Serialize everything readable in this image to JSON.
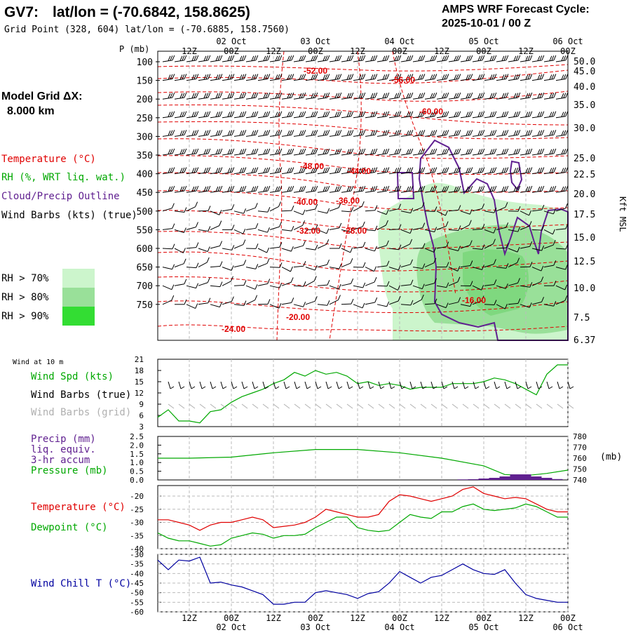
{
  "header": {
    "station": "GV7:",
    "latlon": "lat/lon = (-70.6842, 158.8625)",
    "grid_point": "Grid Point (328, 604) lat/lon = (-70.6885, 158.7560)",
    "cycle_title": "AMPS WRF Forecast Cycle:",
    "cycle_value": "2025-10-01 / 00  Z",
    "grid_label": "Model Grid ΔX:",
    "grid_value": "8.000 km"
  },
  "time_axis": {
    "days": [
      "02 Oct",
      "03 Oct",
      "04 Oct",
      "05 Oct",
      "06 Oct"
    ],
    "hour_labels": [
      "12Z",
      "00Z",
      "12Z",
      "00Z",
      "12Z",
      "00Z",
      "12Z",
      "00Z",
      "12Z",
      "00Z"
    ],
    "hours": [
      12,
      24,
      36,
      48,
      60,
      72,
      84,
      96,
      108,
      120
    ],
    "range_hours": [
      3,
      120
    ]
  },
  "profile": {
    "p_label": "P (mb)",
    "pressure_levels": [
      "100",
      "150",
      "200",
      "250",
      "300",
      "350",
      "400",
      "450",
      "500",
      "550",
      "600",
      "650",
      "700",
      "750"
    ],
    "height_labels": [
      "50.0",
      "45.0",
      "40.0",
      "35.0",
      "30.0",
      "25.0",
      "22.5",
      "20.0",
      "17.5",
      "15.0",
      "12.5",
      "10.0",
      "7.5",
      "6.37"
    ],
    "height_axis_title": "Kft MSL",
    "legend": [
      {
        "label": "Temperature (°C)",
        "color": "#e00000"
      },
      {
        "label": "RH (%, WRT liq. wat.)",
        "color": "#00a800"
      },
      {
        "label": "Cloud/Precip Outline",
        "color": "#602090"
      },
      {
        "label": "Wind Barbs (kts) (true)",
        "color": "#000000"
      }
    ],
    "rh_legend": [
      {
        "label": "RH > 70%",
        "color": "#ccf5cc"
      },
      {
        "label": "RH > 80%",
        "color": "#99e099"
      },
      {
        "label": "RH > 90%",
        "color": "#33dd33"
      }
    ],
    "temp_labels": [
      "-52.00",
      "-56.00",
      "-60.00",
      "-48.00",
      "-44.00",
      "-40.00",
      "-36.00",
      "-32.00",
      "-28.00",
      "-16.00",
      "-20.00",
      "-24.00"
    ]
  },
  "panel_wind": {
    "title": "Wind at 10 m",
    "labels": [
      {
        "text": "Wind Spd (kts)",
        "color": "#00a800"
      },
      {
        "text": "Wind Barbs (true)",
        "color": "#000000"
      },
      {
        "text": "Wind Barbs (grid)",
        "color": "#b0b0b0"
      }
    ],
    "y_ticks": [
      "21",
      "18",
      "15",
      "12",
      "9",
      "6",
      "3"
    ]
  },
  "panel_precip": {
    "labels": [
      {
        "text": "Precip (mm)",
        "color": "#602090"
      },
      {
        "text": "liq. equiv.",
        "color": "#602090"
      },
      {
        "text": "3-hr accum",
        "color": "#602090"
      },
      {
        "text": "Pressure (mb)",
        "color": "#00a800"
      }
    ],
    "left_ticks": [
      "2.5",
      "2.0",
      "1.5",
      "1.0",
      "0.5",
      "0.0"
    ],
    "right_ticks": [
      "780",
      "770",
      "760",
      "750",
      "740"
    ],
    "right_unit": "(mb)"
  },
  "panel_temp": {
    "labels": [
      {
        "text": "Temperature (°C)",
        "color": "#e00000"
      },
      {
        "text": "Dewpoint (°C)",
        "color": "#00a800"
      }
    ],
    "y_ticks": [
      "-20",
      "-25",
      "-30",
      "-35",
      "-40"
    ]
  },
  "panel_chill": {
    "labels": [
      {
        "text": "Wind Chill T (°C)",
        "color": "#0000a0"
      }
    ],
    "y_ticks": [
      "-30",
      "-35",
      "-40",
      "-45",
      "-50",
      "-55",
      "-60"
    ]
  },
  "chart_data": [
    {
      "type": "line",
      "title": "Wind at 10 m",
      "ylabel": "Wind Spd (kts)",
      "ylim": [
        3,
        21
      ],
      "x": [
        3,
        6,
        9,
        12,
        15,
        18,
        21,
        24,
        27,
        30,
        33,
        36,
        39,
        42,
        45,
        48,
        51,
        54,
        57,
        60,
        63,
        66,
        69,
        72,
        75,
        78,
        81,
        84,
        87,
        90,
        93,
        96,
        99,
        102,
        105,
        108,
        111,
        114,
        117,
        120
      ],
      "series": [
        {
          "name": "Wind Spd (kts)",
          "color": "#00a800",
          "values": [
            5.5,
            7.5,
            4.5,
            4.5,
            4,
            7,
            7.5,
            9.5,
            11,
            12,
            13,
            14.5,
            15.5,
            17.5,
            16.5,
            18,
            17,
            17.5,
            16.5,
            14.5,
            15,
            14,
            14.5,
            14,
            13,
            13.5,
            13.5,
            13.5,
            14.5,
            14.5,
            14.5,
            15,
            16,
            15.5,
            14.5,
            13,
            11.5,
            17,
            19.5,
            19.5
          ]
        }
      ],
      "barbs_true": {
        "color": "#000000",
        "x_start": 3,
        "x_end": 120,
        "y": 15
      },
      "barbs_grid": {
        "color": "#b0b0b0",
        "x_start": 3,
        "x_end": 120,
        "y": 9
      }
    },
    {
      "type": "bar",
      "title": "Precip / Pressure",
      "ylabel": "Precip (mm)",
      "ylim": [
        0,
        2.5
      ],
      "y2lim": [
        740,
        780
      ],
      "series": [
        {
          "name": "Pressure (mb)",
          "type": "line",
          "color": "#00a800",
          "axis": "right",
          "x": [
            3,
            12,
            24,
            36,
            48,
            60,
            72,
            84,
            96,
            102,
            108,
            114,
            120
          ],
          "values": [
            760,
            760,
            761,
            765,
            768,
            768,
            765,
            760,
            753,
            745,
            744,
            746,
            749
          ]
        },
        {
          "name": "Precip (mm)",
          "type": "bar",
          "color": "#602090",
          "axis": "left",
          "x": [
            90,
            93,
            96,
            99,
            102,
            105,
            108,
            111,
            114,
            117
          ],
          "values": [
            0.03,
            0.04,
            0.08,
            0.12,
            0.2,
            0.32,
            0.32,
            0.2,
            0.12,
            0.05
          ]
        }
      ]
    },
    {
      "type": "line",
      "title": "Temperature / Dewpoint",
      "ylabel": "(°C)",
      "ylim": [
        -40,
        -16
      ],
      "x": [
        3,
        6,
        9,
        12,
        15,
        18,
        21,
        24,
        27,
        30,
        33,
        36,
        39,
        42,
        45,
        48,
        51,
        54,
        57,
        60,
        63,
        66,
        69,
        72,
        75,
        78,
        81,
        84,
        87,
        90,
        93,
        96,
        99,
        102,
        105,
        108,
        111,
        114,
        117,
        120
      ],
      "series": [
        {
          "name": "Temperature (°C)",
          "color": "#e00000",
          "values": [
            -29,
            -29,
            -30,
            -31,
            -33,
            -31,
            -30,
            -30,
            -29,
            -28,
            -29,
            -32,
            -31.5,
            -31,
            -30,
            -28,
            -25,
            -26,
            -27,
            -28,
            -28,
            -27,
            -22,
            -19.5,
            -20,
            -21,
            -22,
            -21,
            -20,
            -17.5,
            -16.5,
            -19,
            -20,
            -21,
            -20.5,
            -21,
            -23,
            -25,
            -26,
            -26
          ]
        },
        {
          "name": "Dewpoint (°C)",
          "color": "#00a800",
          "values": [
            -34,
            -36,
            -37,
            -37,
            -38,
            -39,
            -38.5,
            -36,
            -35,
            -34,
            -34.5,
            -36,
            -35,
            -35,
            -34.5,
            -32,
            -30,
            -28,
            -28,
            -32,
            -33,
            -33.5,
            -33,
            -30,
            -27,
            -28,
            -28.5,
            -26,
            -26,
            -24,
            -23,
            -25,
            -25.5,
            -25,
            -24.5,
            -23,
            -24,
            -26,
            -28,
            -28
          ]
        }
      ]
    },
    {
      "type": "line",
      "title": "Wind Chill",
      "ylabel": "Wind Chill T (°C)",
      "ylim": [
        -60,
        -30
      ],
      "x": [
        3,
        6,
        9,
        12,
        15,
        18,
        21,
        24,
        27,
        30,
        33,
        36,
        39,
        42,
        45,
        48,
        51,
        54,
        57,
        60,
        63,
        66,
        69,
        72,
        75,
        78,
        81,
        84,
        87,
        90,
        93,
        96,
        99,
        102,
        105,
        108,
        111,
        114,
        117,
        120
      ],
      "series": [
        {
          "name": "Wind Chill T (°C)",
          "color": "#0000a0",
          "values": [
            -33,
            -38,
            -33,
            -33.5,
            -31.5,
            -45,
            -44.5,
            -46,
            -47,
            -49,
            -51,
            -56,
            -56,
            -55,
            -55,
            -50,
            -49,
            -50,
            -51,
            -53,
            -50.5,
            -49.5,
            -45,
            -39,
            -42,
            -45,
            -42,
            -41,
            -38,
            -35,
            -38,
            -40,
            -40.5,
            -38,
            -45,
            -51,
            -53,
            -54,
            -55,
            -55
          ]
        }
      ]
    }
  ]
}
